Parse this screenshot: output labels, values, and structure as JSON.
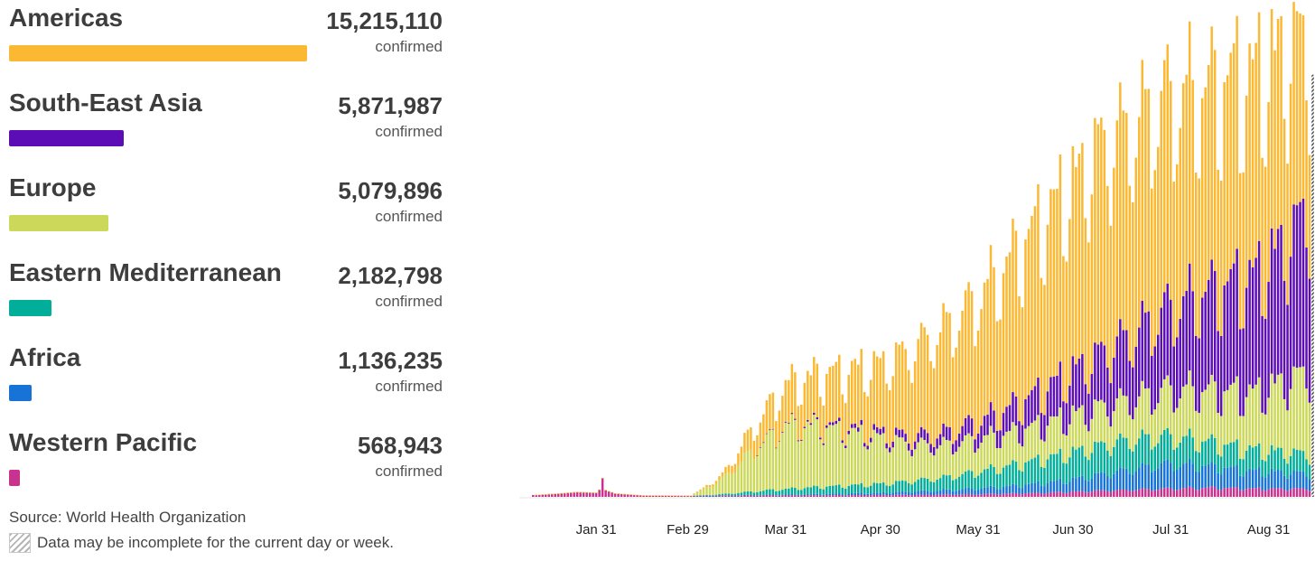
{
  "legend": {
    "regions": [
      {
        "name": "Americas",
        "value": "15,215,110",
        "unit": "confirmed",
        "color": "#fbb832"
      },
      {
        "name": "South-East Asia",
        "value": "5,871,987",
        "unit": "confirmed",
        "color": "#5d0db5"
      },
      {
        "name": "Europe",
        "value": "5,079,896",
        "unit": "confirmed",
        "color": "#ccd85a"
      },
      {
        "name": "Eastern Mediterranean",
        "value": "2,182,798",
        "unit": "confirmed",
        "color": "#00ae9a"
      },
      {
        "name": "Africa",
        "value": "1,136,235",
        "unit": "confirmed",
        "color": "#1774d6"
      },
      {
        "name": "Western Pacific",
        "value": "568,943",
        "unit": "confirmed",
        "color": "#c8338f"
      }
    ]
  },
  "source": "Source: World Health Organization",
  "note": "Data may be incomplete for the current day or week.",
  "chart_data": {
    "type": "bar",
    "stacked": true,
    "x_ticks": [
      "Jan 31",
      "Feb 29",
      "Mar 31",
      "Apr 30",
      "May 31",
      "Jun 30",
      "Jul 31",
      "Aug 31"
    ],
    "x_range": [
      "Jan 11",
      "Sep 14"
    ],
    "last_bar_incomplete": true,
    "legend_placement": "left",
    "grid": false,
    "series": [
      {
        "name": "Western Pacific",
        "color": "#c8338f",
        "anchors": [
          [
            0,
            1000
          ],
          [
            8,
            1800
          ],
          [
            14,
            2600
          ],
          [
            20,
            2200
          ],
          [
            21,
            3800
          ],
          [
            22,
            10000
          ],
          [
            23,
            3600
          ],
          [
            26,
            1800
          ],
          [
            35,
            700
          ],
          [
            50,
            500
          ],
          [
            80,
            700
          ],
          [
            110,
            900
          ],
          [
            140,
            1300
          ],
          [
            160,
            2000
          ],
          [
            180,
            3200
          ],
          [
            200,
            4200
          ],
          [
            215,
            4800
          ],
          [
            230,
            4200
          ],
          [
            247,
            4200
          ]
        ]
      },
      {
        "name": "Africa",
        "color": "#1774d6",
        "anchors": [
          [
            0,
            0
          ],
          [
            50,
            0
          ],
          [
            70,
            300
          ],
          [
            90,
            600
          ],
          [
            110,
            1200
          ],
          [
            130,
            2300
          ],
          [
            150,
            3800
          ],
          [
            170,
            6200
          ],
          [
            185,
            9800
          ],
          [
            200,
            13000
          ],
          [
            210,
            12000
          ],
          [
            225,
            9500
          ],
          [
            247,
            8000
          ]
        ]
      },
      {
        "name": "Eastern Mediterranean",
        "color": "#00ae9a",
        "anchors": [
          [
            0,
            0
          ],
          [
            50,
            0
          ],
          [
            60,
            700
          ],
          [
            75,
            2500
          ],
          [
            90,
            3800
          ],
          [
            110,
            4600
          ],
          [
            130,
            6600
          ],
          [
            150,
            10500
          ],
          [
            170,
            14000
          ],
          [
            185,
            15500
          ],
          [
            200,
            14500
          ],
          [
            215,
            12500
          ],
          [
            230,
            11000
          ],
          [
            247,
            10000
          ]
        ]
      },
      {
        "name": "Europe",
        "color": "#ccd85a",
        "anchors": [
          [
            0,
            0
          ],
          [
            50,
            200
          ],
          [
            60,
            8000
          ],
          [
            70,
            22000
          ],
          [
            80,
            33000
          ],
          [
            90,
            32000
          ],
          [
            100,
            28000
          ],
          [
            110,
            24000
          ],
          [
            120,
            19000
          ],
          [
            130,
            17000
          ],
          [
            140,
            17000
          ],
          [
            150,
            17000
          ],
          [
            160,
            18000
          ],
          [
            170,
            19000
          ],
          [
            180,
            20000
          ],
          [
            190,
            21000
          ],
          [
            200,
            24000
          ],
          [
            210,
            26000
          ],
          [
            220,
            28000
          ],
          [
            230,
            30000
          ],
          [
            240,
            38000
          ],
          [
            247,
            44000
          ]
        ]
      },
      {
        "name": "South-East Asia",
        "color": "#5d0db5",
        "anchors": [
          [
            0,
            0
          ],
          [
            70,
            0
          ],
          [
            85,
            600
          ],
          [
            100,
            1800
          ],
          [
            115,
            3500
          ],
          [
            130,
            6000
          ],
          [
            145,
            10500
          ],
          [
            160,
            17000
          ],
          [
            175,
            25000
          ],
          [
            190,
            34000
          ],
          [
            205,
            45000
          ],
          [
            220,
            56000
          ],
          [
            230,
            62000
          ],
          [
            240,
            75000
          ],
          [
            247,
            88000
          ]
        ]
      },
      {
        "name": "Americas",
        "color": "#fbb832",
        "anchors": [
          [
            0,
            0
          ],
          [
            50,
            10
          ],
          [
            60,
            2000
          ],
          [
            70,
            12000
          ],
          [
            80,
            21000
          ],
          [
            95,
            28000
          ],
          [
            110,
            35000
          ],
          [
            125,
            50000
          ],
          [
            140,
            63000
          ],
          [
            150,
            76000
          ],
          [
            160,
            88000
          ],
          [
            170,
            96000
          ],
          [
            180,
            108000
          ],
          [
            190,
            108000
          ],
          [
            200,
            110000
          ],
          [
            210,
            106000
          ],
          [
            220,
            106000
          ],
          [
            230,
            104000
          ],
          [
            240,
            98000
          ],
          [
            247,
            84000
          ]
        ]
      }
    ]
  }
}
